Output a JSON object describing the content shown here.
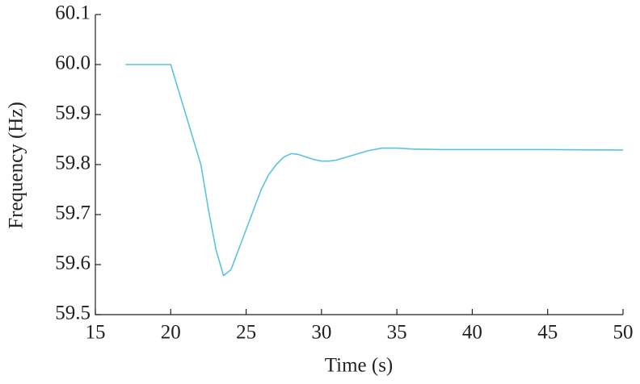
{
  "chart_data": {
    "type": "line",
    "x_label": "Time (s)",
    "y_label": "Frequency (Hz)",
    "x": [
      17,
      18,
      19,
      20,
      20.5,
      21,
      21.5,
      22,
      22.5,
      23,
      23.5,
      24,
      24.5,
      25,
      25.5,
      26,
      26.5,
      27,
      27.5,
      28,
      28.5,
      29,
      29.5,
      30,
      30.5,
      31,
      32,
      33,
      34,
      35,
      36,
      38,
      40,
      45,
      50
    ],
    "values": [
      60.0,
      60.0,
      60.0,
      60.0,
      59.95,
      59.9,
      59.85,
      59.8,
      59.71,
      59.63,
      59.578,
      59.59,
      59.63,
      59.67,
      59.71,
      59.75,
      59.78,
      59.8,
      59.815,
      59.822,
      59.82,
      59.815,
      59.81,
      59.807,
      59.807,
      59.809,
      59.818,
      59.827,
      59.833,
      59.833,
      59.831,
      59.83,
      59.83,
      59.83,
      59.829
    ],
    "color": "#5bc4dc",
    "xlim": [
      15,
      50
    ],
    "xticks": [
      15,
      20,
      25,
      30,
      35,
      40,
      45,
      50
    ],
    "ylim": [
      59.5,
      60.1
    ],
    "yticks": [
      59.5,
      59.6,
      59.7,
      59.8,
      59.9,
      {
        "value": 60,
        "label": "60.0"
      },
      60.1
    ]
  }
}
